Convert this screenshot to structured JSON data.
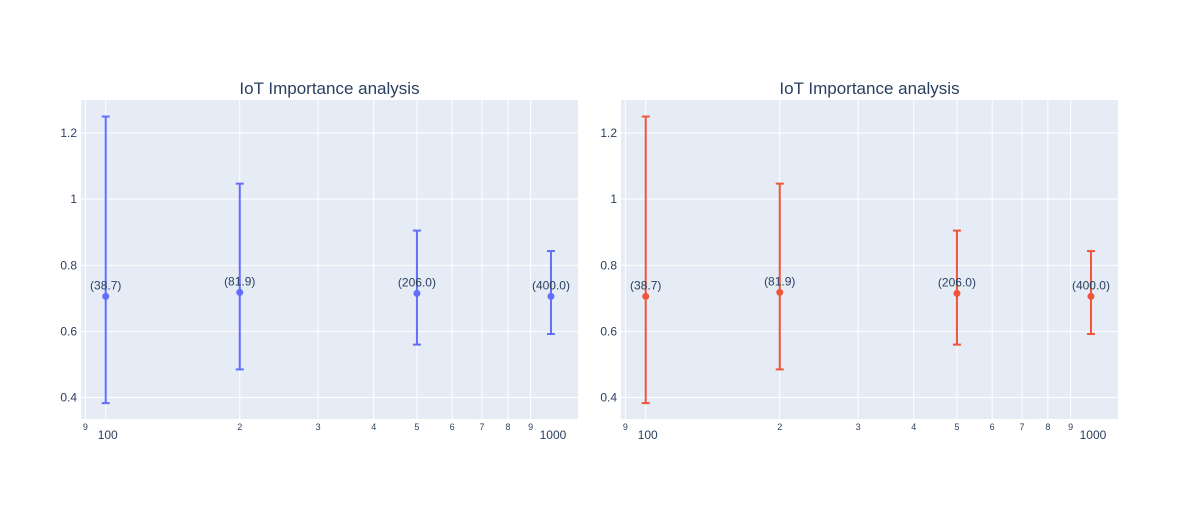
{
  "chart_data": [
    {
      "type": "scatter",
      "title": "IoT Importance analysis",
      "xlabel": "",
      "ylabel": "",
      "x_scale": "log",
      "xlim": [
        88,
        1150
      ],
      "ylim": [
        0.335,
        1.3
      ],
      "grid": true,
      "x_major_ticks": [
        "100",
        "1000"
      ],
      "x_minor_ticks": [
        "9",
        "2",
        "3",
        "4",
        "5",
        "6",
        "7",
        "8",
        "9"
      ],
      "y_ticks": [
        "0.4",
        "0.6",
        "0.8",
        "1",
        "1.2"
      ],
      "color": "#636efa",
      "points": [
        {
          "x": 100,
          "y": 0.706,
          "err_low": 0.383,
          "err_high": 1.25,
          "label": "(38.7)"
        },
        {
          "x": 200,
          "y": 0.718,
          "err_low": 0.485,
          "err_high": 1.047,
          "label": "(81.9)"
        },
        {
          "x": 500,
          "y": 0.715,
          "err_low": 0.56,
          "err_high": 0.905,
          "label": "(206.0)"
        },
        {
          "x": 1000,
          "y": 0.706,
          "err_low": 0.592,
          "err_high": 0.843,
          "label": "(400.0)"
        }
      ]
    },
    {
      "type": "scatter",
      "title": "IoT Importance analysis",
      "xlabel": "",
      "ylabel": "",
      "x_scale": "log",
      "xlim": [
        88,
        1150
      ],
      "ylim": [
        0.335,
        1.3
      ],
      "grid": true,
      "x_major_ticks": [
        "100",
        "1000"
      ],
      "x_minor_ticks": [
        "9",
        "2",
        "3",
        "4",
        "5",
        "6",
        "7",
        "8",
        "9"
      ],
      "y_ticks": [
        "0.4",
        "0.6",
        "0.8",
        "1",
        "1.2"
      ],
      "color": "#ef553b",
      "points": [
        {
          "x": 100,
          "y": 0.706,
          "err_low": 0.383,
          "err_high": 1.25,
          "label": "(38.7)"
        },
        {
          "x": 200,
          "y": 0.718,
          "err_low": 0.485,
          "err_high": 1.047,
          "label": "(81.9)"
        },
        {
          "x": 500,
          "y": 0.715,
          "err_low": 0.56,
          "err_high": 0.905,
          "label": "(206.0)"
        },
        {
          "x": 1000,
          "y": 0.706,
          "err_low": 0.592,
          "err_high": 0.843,
          "label": "(400.0)"
        }
      ]
    }
  ]
}
